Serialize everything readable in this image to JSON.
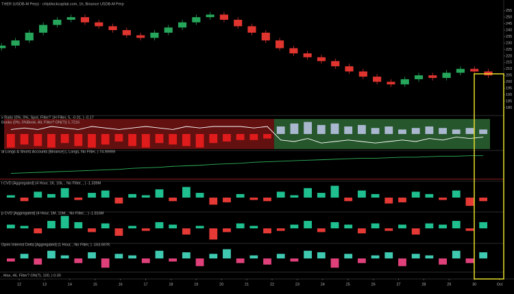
{
  "chart_data": [
    {
      "type": "candlestick",
      "title": "THER (USDB-M Perp) · chlyblockcapital.com, 1h, Binance USDB-M Perp",
      "x": [
        11.3,
        11.85,
        12.4,
        12.95,
        13.5,
        14.05,
        14.6,
        15.15,
        15.7,
        16.25,
        16.8,
        17.35,
        17.9,
        18.45,
        19,
        19.55,
        20.1,
        20.65,
        21.2,
        21.75,
        22.3,
        22.85,
        23.4,
        23.95,
        24.5,
        25.05,
        25.6,
        26.15,
        26.7,
        27.25,
        27.8,
        28.35,
        28.9,
        29.45,
        30,
        30.55
      ],
      "open": [
        226,
        228,
        232,
        238,
        244,
        248,
        250,
        246,
        243,
        240,
        236,
        234,
        238,
        242,
        246,
        250,
        252,
        248,
        243,
        238,
        232,
        226,
        222,
        219,
        216,
        212,
        208,
        204,
        200,
        198,
        202,
        205,
        203,
        207,
        210,
        208
      ],
      "high": [
        230,
        234,
        240,
        246,
        250,
        252,
        252,
        248,
        245,
        242,
        238,
        240,
        244,
        248,
        252,
        254,
        254,
        250,
        245,
        240,
        234,
        228,
        224,
        221,
        218,
        214,
        210,
        206,
        202,
        204,
        207,
        207,
        209,
        212,
        212,
        210
      ],
      "low": [
        224,
        226,
        230,
        236,
        242,
        246,
        244,
        241,
        238,
        234,
        232,
        232,
        236,
        240,
        244,
        248,
        246,
        241,
        236,
        230,
        224,
        220,
        217,
        214,
        210,
        206,
        202,
        198,
        196,
        196,
        200,
        201,
        201,
        205,
        206,
        203
      ],
      "close": [
        228,
        232,
        238,
        244,
        248,
        250,
        246,
        243,
        240,
        236,
        234,
        238,
        242,
        246,
        250,
        252,
        248,
        243,
        238,
        232,
        226,
        222,
        219,
        216,
        212,
        208,
        204,
        200,
        198,
        202,
        205,
        203,
        207,
        210,
        208,
        205
      ],
      "up_color": "#26a65b",
      "down_color": "#e0342f",
      "ylim": [
        176,
        258
      ],
      "yticks": [
        180,
        185,
        190,
        195,
        200,
        205,
        210,
        215,
        220,
        225,
        230,
        235,
        240,
        245,
        250,
        255
      ],
      "xlim": [
        11.24,
        31.16
      ],
      "xticks": [
        12,
        13,
        14,
        15,
        16,
        17,
        18,
        19,
        20,
        21,
        22,
        23,
        24,
        25,
        26,
        27,
        28,
        29,
        30,
        {
          "value": 31,
          "label": "Oct"
        }
      ]
    },
    {
      "type": "bar",
      "title": "x Ratio (0%, 0%, Spot, Filter? 1H Filter, 5, -0.01, ) -0.17",
      "subtitle": "Books (0%, 0%Book, All, Filter? ON(?)) 1.7216",
      "ylim": [
        -1,
        1
      ],
      "series": [
        {
          "color": "#e01b1b",
          "band_color": "#7a1414",
          "values": [
            -0.9,
            -0.7,
            -0.8,
            -0.9,
            -0.6,
            -0.8,
            -0.9,
            -0.7,
            -0.5,
            -0.8,
            -0.9,
            -0.6,
            -0.7,
            -0.8,
            -0.9,
            -0.6,
            -0.5,
            -0.4,
            -0.4,
            -0.3,
            null,
            null,
            null,
            null,
            null,
            null,
            null,
            null,
            null,
            null,
            null,
            null,
            null,
            null,
            null,
            null
          ]
        },
        {
          "color": "#a9b8cf",
          "band_color": "#2f6b36",
          "values": [
            null,
            null,
            null,
            null,
            null,
            null,
            null,
            null,
            null,
            null,
            null,
            null,
            null,
            null,
            null,
            null,
            null,
            null,
            null,
            null,
            0.5,
            0.7,
            0.8,
            0.6,
            0.7,
            0.5,
            0.6,
            0.4,
            0.5,
            0.3,
            0.4,
            0.5,
            0.4,
            0.3,
            0.4,
            0.3
          ]
        }
      ],
      "line": {
        "color": "#ffffff",
        "values": [
          0.3,
          0.4,
          0.3,
          0.5,
          0.4,
          0.3,
          0.5,
          0.4,
          0.3,
          0.4,
          0.5,
          0.4,
          0.3,
          0.5,
          0.4,
          0.5,
          0.5,
          0.5,
          0.4,
          0.5,
          -0.4,
          -0.5,
          -0.3,
          -0.6,
          -0.5,
          -0.4,
          -0.5,
          -0.6,
          -0.5,
          -0.4,
          -0.5,
          -0.3,
          -0.4,
          -0.2,
          -0.3,
          -0.2
        ]
      }
    },
    {
      "type": "line",
      "title": "al Longs & Shorts Accounts [Binance] (, Longs, No Filter, ) 74.99999",
      "color": "#2fb35a",
      "ylim": [
        30,
        80
      ],
      "values": [
        40,
        41,
        42,
        43,
        44,
        45,
        46,
        47,
        48,
        50,
        51,
        52,
        54,
        55,
        56,
        58,
        59,
        60,
        62,
        63,
        64,
        65,
        66,
        67,
        68,
        69,
        70,
        70,
        71,
        72,
        72,
        73,
        74,
        74,
        75,
        75
      ]
    },
    {
      "type": "bar",
      "title": "t CVD [Aggregated] (4 Hour, 1K, 10k, , No Filter, , ) -1.339M",
      "pos_color": "#1fbf8f",
      "neg_color": "#e53935",
      "ylim": [
        -1.1,
        1.1
      ],
      "values": [
        0.2,
        -0.3,
        0.5,
        0.3,
        0.8,
        -0.2,
        0.4,
        0.6,
        -0.5,
        0.3,
        0.2,
        0.7,
        -0.3,
        0.9,
        0.4,
        -0.6,
        -0.4,
        0.3,
        -0.2,
        -0.3,
        0.5,
        0.2,
        0.8,
        0.4,
        1,
        -0.3,
        0.6,
        0.3,
        -0.5,
        -0.4,
        0.5,
        0.3,
        -0.2,
        0.6,
        -0.7,
        -0.3
      ]
    },
    {
      "type": "bar",
      "title": "p CVD [Aggregated] (4 Hour, 1M, 10M, , No Filter, , ) -1.816M",
      "pos_color": "#1fbf8f",
      "neg_color": "#e53935",
      "ylim": [
        -1.1,
        1.1
      ],
      "values": [
        0.3,
        0.2,
        -0.4,
        0.6,
        1,
        0.5,
        -0.3,
        0.4,
        -0.6,
        0.2,
        -0.2,
        0.5,
        0.3,
        -0.5,
        0.2,
        -0.9,
        -0.3,
        0.4,
        0.2,
        -0.4,
        -0.2,
        0.3,
        0.6,
        -0.3,
        0.5,
        0.3,
        -0.4,
        0.4,
        -0.2,
        0.3,
        -0.5,
        0.4,
        0.3,
        0.6,
        -0.2,
        0.5
      ]
    },
    {
      "type": "bar",
      "title": "Open Interest Delta [Aggregated] (1 Hour, , No Filter, ) -163.697K",
      "pos_color": "#3fc9b0",
      "neg_color": "#e0407a",
      "ylim": [
        -0.8,
        0.8
      ],
      "values": [
        -0.2,
        0.3,
        -0.4,
        0.5,
        0.2,
        -0.3,
        0.4,
        -0.6,
        0.3,
        0.2,
        -0.3,
        0.5,
        -0.2,
        0.4,
        -0.5,
        0.3,
        0.6,
        -0.3,
        0.2,
        -0.4,
        0.3,
        -0.2,
        0.5,
        0.4,
        -0.6,
        0.3,
        -0.3,
        0.2,
        0.4,
        -0.5,
        0.3,
        0.2,
        -0.4,
        0.5,
        -0.3,
        0.4
      ]
    }
  ],
  "indicator_label": ", Max, 46, Filter? ON(?), 100, ) 0.00"
}
